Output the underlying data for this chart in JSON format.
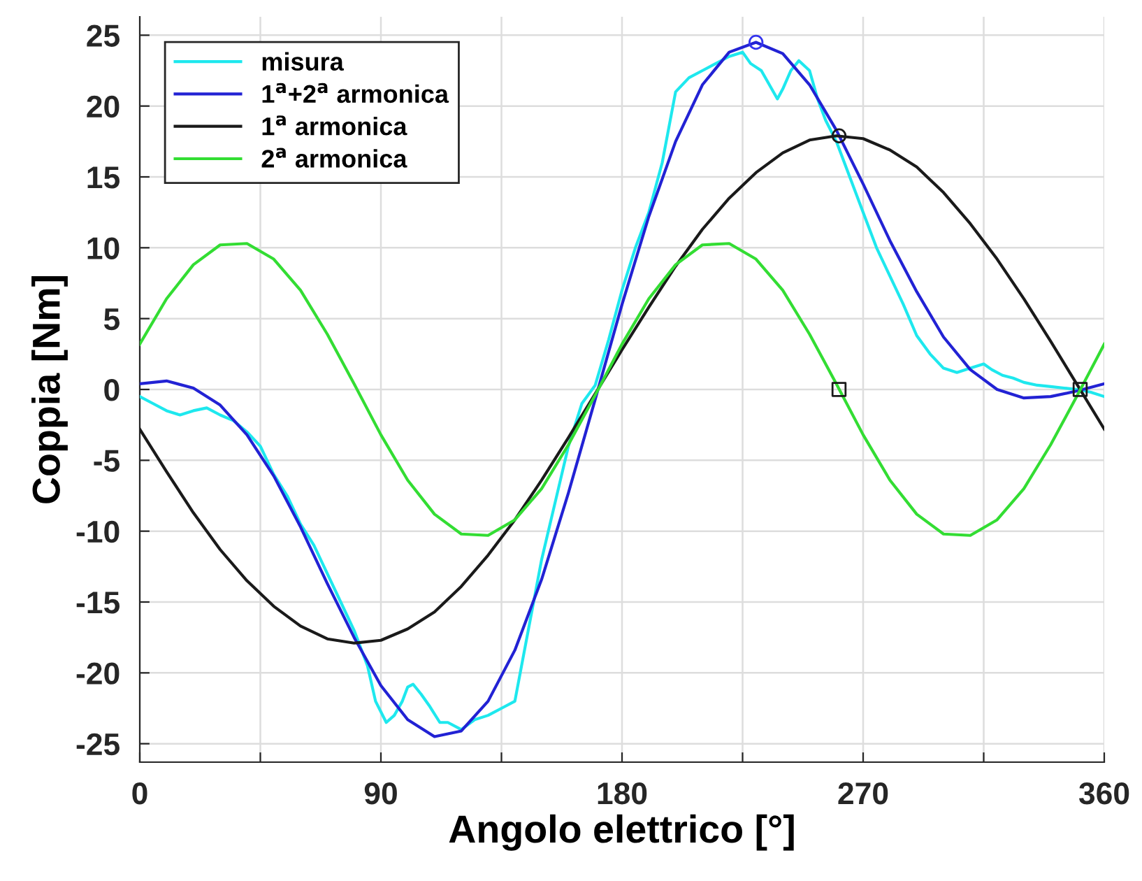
{
  "chart_data": {
    "type": "line",
    "xlabel": "Angolo elettrico [°]",
    "ylabel": "Coppia [Nm]",
    "xlim": [
      0,
      360
    ],
    "ylim": [
      -26.3,
      26.3
    ],
    "xticks": [
      0,
      {
        "value": 45,
        "label": null
      },
      90,
      {
        "value": 135,
        "label": null
      },
      180,
      {
        "value": 225,
        "label": null
      },
      270,
      {
        "value": 315,
        "label": null
      },
      360
    ],
    "yticks": [
      -25,
      -20,
      -15,
      -10,
      -5,
      0,
      5,
      10,
      15,
      20,
      25
    ],
    "grid": true,
    "legend": "top left",
    "marker": "none",
    "line_style": "solid",
    "series": [
      {
        "name": "misura",
        "color": "#1ee8ee",
        "x": [
          0,
          5,
          10,
          15,
          20,
          25,
          30,
          35,
          40,
          45,
          50,
          55,
          60,
          65,
          70,
          75,
          80,
          85,
          88,
          92,
          95,
          98,
          100,
          102,
          105,
          108,
          112,
          115,
          120,
          125,
          130,
          135,
          140,
          143,
          147,
          150,
          155,
          160,
          165,
          170,
          175,
          180,
          185,
          190,
          195,
          198,
          200,
          205,
          210,
          215,
          220,
          225,
          228,
          232,
          235,
          238,
          240,
          243,
          246,
          250,
          253,
          256,
          260,
          265,
          270,
          275,
          280,
          285,
          290,
          295,
          300,
          305,
          310,
          315,
          318,
          322,
          326,
          330,
          335,
          340,
          345,
          350,
          355,
          360
        ],
        "values": [
          -0.5,
          -1.0,
          -1.5,
          -1.8,
          -1.5,
          -1.3,
          -1.8,
          -2.2,
          -3.0,
          -4.0,
          -6.0,
          -7.5,
          -9.5,
          -11,
          -13,
          -15,
          -17,
          -19.5,
          -22,
          -23.5,
          -23,
          -22,
          -21,
          -20.8,
          -21.5,
          -22.3,
          -23.5,
          -23.5,
          -24,
          -23.3,
          -23,
          -22.5,
          -22,
          -19,
          -15,
          -12,
          -8,
          -4,
          -1,
          0.3,
          3.5,
          7,
          10,
          12.5,
          16,
          19,
          21,
          22,
          22.5,
          23,
          23.5,
          23.8,
          23,
          22.5,
          21.5,
          20.5,
          21.2,
          22.5,
          23.2,
          22.5,
          20.5,
          19,
          17.5,
          15,
          12.5,
          10,
          8,
          6,
          3.8,
          2.5,
          1.5,
          1.2,
          1.5,
          1.8,
          1.4,
          1.0,
          0.8,
          0.5,
          0.3,
          0.2,
          0.1,
          0,
          -0.2,
          -0.5
        ]
      },
      {
        "name": "1$^{a}$+2$^{a}$ armonica",
        "color": "#2222d4",
        "x": [
          0,
          10,
          20,
          30,
          40,
          50,
          60,
          70,
          80,
          90,
          100,
          110,
          120,
          130,
          140,
          150,
          160,
          170,
          180,
          190,
          200,
          210,
          220,
          230,
          240,
          250,
          260,
          270,
          280,
          290,
          300,
          310,
          320,
          330,
          340,
          350,
          360
        ],
        "values": [
          0.4,
          0.6,
          0.1,
          -1.1,
          -3.2,
          -6.1,
          -9.7,
          -13.7,
          -17.5,
          -20.9,
          -23.3,
          -24.5,
          -24.1,
          -22.0,
          -18.4,
          -13.4,
          -7.3,
          -0.7,
          6.0,
          12.2,
          17.5,
          21.5,
          23.8,
          24.5,
          23.7,
          21.5,
          18.3,
          14.5,
          10.5,
          6.9,
          3.7,
          1.4,
          0.0,
          -0.6,
          -0.5,
          -0.1,
          0.4
        ]
      },
      {
        "name": "1$^{a}$ armonica",
        "color": "#1a1a1a",
        "x": [
          0,
          10,
          20,
          30,
          40,
          50,
          60,
          70,
          80,
          90,
          100,
          110,
          120,
          130,
          140,
          150,
          160,
          170,
          180,
          190,
          200,
          210,
          220,
          230,
          240,
          250,
          260,
          270,
          280,
          290,
          300,
          310,
          320,
          330,
          340,
          350,
          360
        ],
        "values": [
          -2.8,
          -5.8,
          -8.7,
          -11.3,
          -13.5,
          -15.3,
          -16.7,
          -17.6,
          -17.9,
          -17.7,
          -16.9,
          -15.7,
          -13.9,
          -11.7,
          -9.2,
          -6.4,
          -3.4,
          -0.3,
          2.8,
          5.8,
          8.7,
          11.3,
          13.5,
          15.3,
          16.7,
          17.6,
          17.9,
          17.7,
          16.9,
          15.7,
          13.9,
          11.7,
          9.2,
          6.4,
          3.4,
          0.3,
          -2.8
        ]
      },
      {
        "name": "2$^{a}$ armonica",
        "color": "#33dd33",
        "x": [
          0,
          10,
          20,
          30,
          40,
          50,
          60,
          70,
          80,
          90,
          100,
          110,
          120,
          130,
          140,
          150,
          160,
          170,
          180,
          190,
          200,
          210,
          220,
          230,
          240,
          250,
          260,
          270,
          280,
          290,
          300,
          310,
          320,
          330,
          340,
          350,
          360
        ],
        "values": [
          3.2,
          6.4,
          8.8,
          10.2,
          10.3,
          9.2,
          7.0,
          3.9,
          0.4,
          -3.2,
          -6.4,
          -8.8,
          -10.2,
          -10.3,
          -9.2,
          -7.0,
          -3.9,
          -0.4,
          3.2,
          6.4,
          8.8,
          10.2,
          10.3,
          9.2,
          7.0,
          3.9,
          0.4,
          -3.2,
          -6.4,
          -8.8,
          -10.2,
          -10.3,
          -9.2,
          -7.0,
          -3.9,
          -0.4,
          3.2
        ]
      },
      {
        "type": "scatter",
        "marker": "circle",
        "color": "#3333ee",
        "x": [
          230
        ],
        "values": [
          24.5
        ]
      },
      {
        "type": "scatter",
        "marker": "circle",
        "color": "#1a1a1a",
        "x": [
          261
        ],
        "values": [
          17.9
        ]
      },
      {
        "type": "scatter",
        "marker": "square",
        "color": "#1a1a1a",
        "x": [
          261,
          351
        ],
        "values": [
          0,
          0
        ]
      }
    ]
  }
}
